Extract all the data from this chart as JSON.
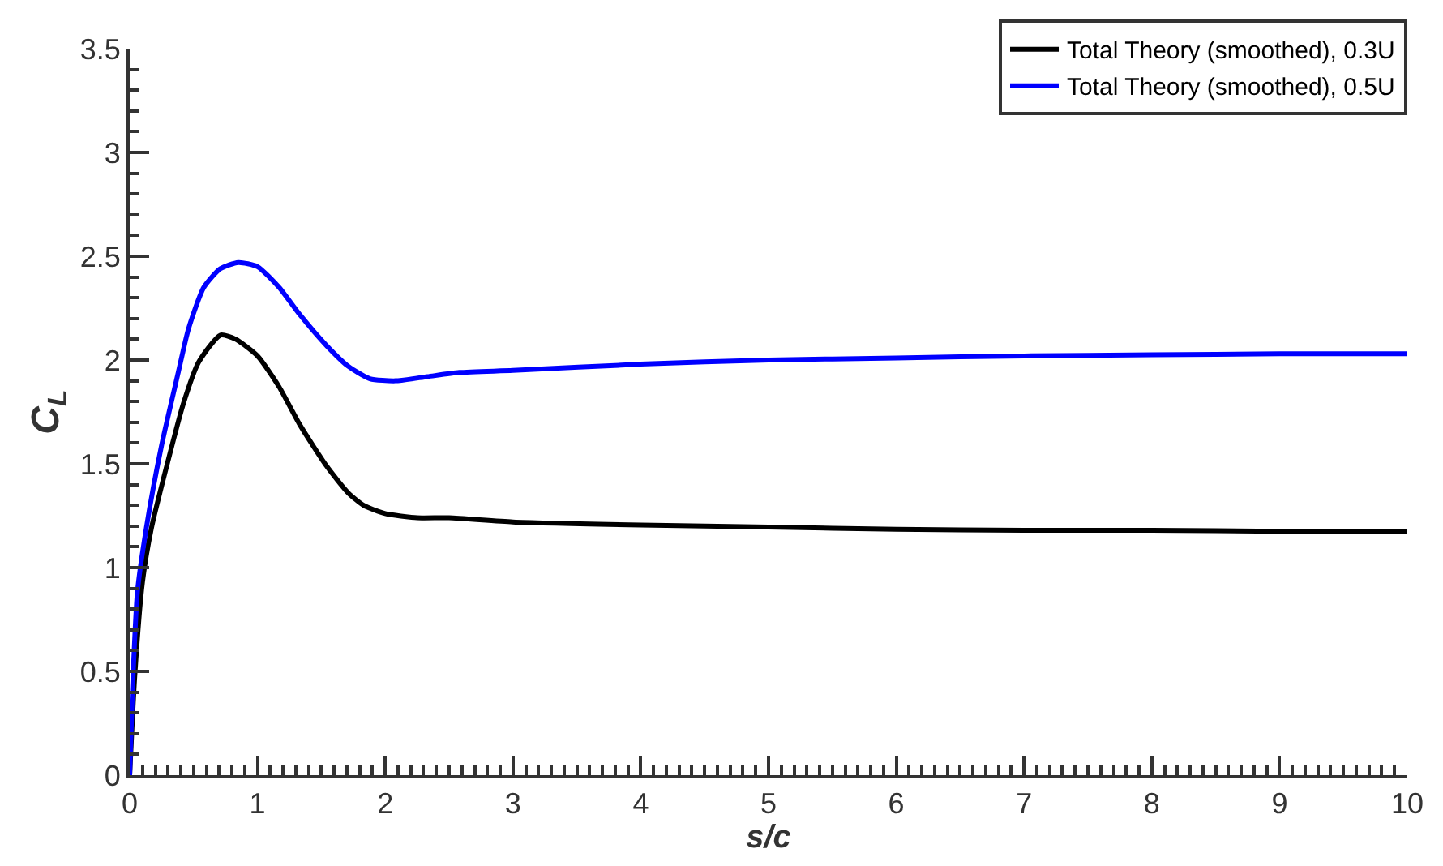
{
  "chart_data": {
    "type": "line",
    "xlabel": "s/c",
    "ylabel": "C$_{L}$",
    "xlim": [
      0,
      10
    ],
    "xticks": [
      0,
      1,
      2,
      3,
      4,
      5,
      6,
      7,
      8,
      9,
      10
    ],
    "ylim": [
      0,
      3.5
    ],
    "yticks": [
      0,
      0.5,
      1,
      1.5,
      2,
      2.5,
      3,
      3.5
    ],
    "legend": "top right",
    "marker": "none",
    "line_style": "solid",
    "series": [
      {
        "name": "Total Theory (smoothed), 0.3U",
        "color": "#000000",
        "x": [
          0,
          0.04,
          0.1,
          0.17,
          0.29,
          0.42,
          0.54,
          0.71,
          0.83,
          1.0,
          1.17,
          1.33,
          1.54,
          1.71,
          1.83,
          2.0,
          2.25,
          2.5,
          3,
          4,
          5,
          6,
          7,
          8,
          9,
          10
        ],
        "values": [
          0,
          0.48,
          0.93,
          1.19,
          1.49,
          1.79,
          1.99,
          2.12,
          2.1,
          2.02,
          1.87,
          1.69,
          1.49,
          1.36,
          1.3,
          1.26,
          1.24,
          1.24,
          1.22,
          1.205,
          1.195,
          1.185,
          1.18,
          1.18,
          1.175,
          1.175
        ]
      },
      {
        "name": "Total Theory (smoothed), 0.5U",
        "color": "#0000ff",
        "x": [
          0,
          0.02,
          0.06,
          0.13,
          0.25,
          0.38,
          0.46,
          0.58,
          0.71,
          0.85,
          1.0,
          1.17,
          1.33,
          1.54,
          1.71,
          1.88,
          2.08,
          2.33,
          2.58,
          3,
          4,
          5,
          6,
          7,
          8,
          9,
          10
        ],
        "values": [
          0,
          0.38,
          0.88,
          1.19,
          1.59,
          1.94,
          2.15,
          2.35,
          2.44,
          2.47,
          2.45,
          2.35,
          2.22,
          2.07,
          1.97,
          1.91,
          1.9,
          1.92,
          1.94,
          1.95,
          1.98,
          2.0,
          2.01,
          2.02,
          2.025,
          2.03,
          2.03
        ]
      }
    ]
  }
}
